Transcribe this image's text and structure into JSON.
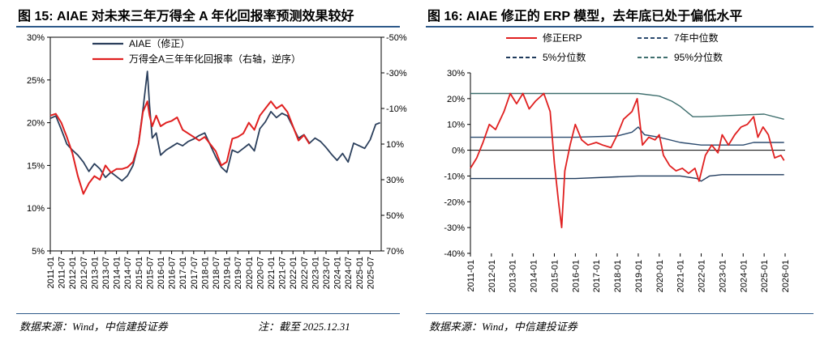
{
  "figure1": {
    "title": "图 15: AIAE 对未来三年万得全 A 年化回报率预测效果较好",
    "source": "数据来源：Wind，中信建投证券",
    "note": "注：截至 2025.12.31"
  },
  "figure2": {
    "title": "图 16: AIAE 修正的 ERP 模型，去年底已处于偏低水平",
    "source": "数据来源：Wind，中信建投证券"
  },
  "chart_data": [
    {
      "type": "line",
      "left_axis": {
        "ylim": [
          5,
          30
        ],
        "ticks": [
          "5%",
          "10%",
          "15%",
          "20%",
          "25%",
          "30%"
        ]
      },
      "right_axis": {
        "ylim": [
          -50,
          70
        ],
        "inverted": true,
        "ticks": [
          "-50%",
          "-30%",
          "-10%",
          "10%",
          "30%",
          "50%",
          "70%"
        ]
      },
      "x_ticks": [
        "2011-01",
        "2011-07",
        "2012-01",
        "2012-07",
        "2013-01",
        "2013-07",
        "2014-01",
        "2014-07",
        "2015-01",
        "2015-07",
        "2016-01",
        "2016-07",
        "2017-01",
        "2017-07",
        "2018-01",
        "2018-07",
        "2019-01",
        "2019-07",
        "2020-01",
        "2020-07",
        "2021-01",
        "2021-07",
        "2022-01",
        "2022-07",
        "2023-01",
        "2023-07",
        "2024-01",
        "2024-07",
        "2025-01",
        "2025-07"
      ],
      "legend_position": "top",
      "series": [
        {
          "name": "AIAE（修正）",
          "axis": "left",
          "color": "#2b3f5c",
          "points": [
            [
              2011.0,
              20.5
            ],
            [
              2011.25,
              20.8
            ],
            [
              2011.5,
              19.2
            ],
            [
              2011.75,
              17.5
            ],
            [
              2012.0,
              16.8
            ],
            [
              2012.25,
              16.2
            ],
            [
              2012.5,
              15.4
            ],
            [
              2012.75,
              14.3
            ],
            [
              2013.0,
              15.2
            ],
            [
              2013.25,
              14.6
            ],
            [
              2013.5,
              13.6
            ],
            [
              2013.75,
              14.2
            ],
            [
              2014.0,
              13.7
            ],
            [
              2014.25,
              13.2
            ],
            [
              2014.5,
              13.8
            ],
            [
              2014.75,
              15.0
            ],
            [
              2015.0,
              17.6
            ],
            [
              2015.2,
              21.5
            ],
            [
              2015.4,
              26.0
            ],
            [
              2015.5,
              22.0
            ],
            [
              2015.62,
              18.2
            ],
            [
              2015.8,
              18.8
            ],
            [
              2016.0,
              16.2
            ],
            [
              2016.25,
              16.8
            ],
            [
              2016.5,
              17.2
            ],
            [
              2016.75,
              17.6
            ],
            [
              2017.0,
              17.3
            ],
            [
              2017.25,
              17.8
            ],
            [
              2017.5,
              18.1
            ],
            [
              2017.75,
              18.5
            ],
            [
              2018.0,
              18.8
            ],
            [
              2018.25,
              17.4
            ],
            [
              2018.5,
              16.0
            ],
            [
              2018.75,
              14.8
            ],
            [
              2019.0,
              14.2
            ],
            [
              2019.25,
              16.8
            ],
            [
              2019.5,
              16.5
            ],
            [
              2019.75,
              17.0
            ],
            [
              2020.0,
              17.5
            ],
            [
              2020.25,
              16.7
            ],
            [
              2020.5,
              19.3
            ],
            [
              2020.75,
              20.1
            ],
            [
              2021.0,
              21.3
            ],
            [
              2021.25,
              20.6
            ],
            [
              2021.5,
              21.1
            ],
            [
              2021.75,
              20.8
            ],
            [
              2022.0,
              19.5
            ],
            [
              2022.25,
              18.2
            ],
            [
              2022.5,
              18.6
            ],
            [
              2022.75,
              17.6
            ],
            [
              2023.0,
              18.2
            ],
            [
              2023.25,
              17.8
            ],
            [
              2023.5,
              17.1
            ],
            [
              2023.75,
              16.3
            ],
            [
              2024.0,
              15.6
            ],
            [
              2024.25,
              16.4
            ],
            [
              2024.5,
              15.4
            ],
            [
              2024.75,
              17.6
            ],
            [
              2025.0,
              17.3
            ],
            [
              2025.25,
              17.0
            ],
            [
              2025.5,
              18.0
            ],
            [
              2025.75,
              19.8
            ],
            [
              2025.95,
              20.0
            ]
          ]
        },
        {
          "name": "万得全A三年年化回报率（右轴，逆序）",
          "axis": "right",
          "color": "#e02020",
          "points": [
            [
              2011.0,
              -6
            ],
            [
              2011.25,
              -7
            ],
            [
              2011.5,
              -2
            ],
            [
              2011.75,
              6
            ],
            [
              2012.0,
              15
            ],
            [
              2012.25,
              28
            ],
            [
              2012.5,
              38
            ],
            [
              2012.75,
              32
            ],
            [
              2013.0,
              28
            ],
            [
              2013.25,
              30
            ],
            [
              2013.5,
              22
            ],
            [
              2013.75,
              26
            ],
            [
              2014.0,
              24
            ],
            [
              2014.25,
              24
            ],
            [
              2014.5,
              23
            ],
            [
              2014.75,
              20
            ],
            [
              2015.0,
              10
            ],
            [
              2015.2,
              -8
            ],
            [
              2015.4,
              -14
            ],
            [
              2015.5,
              -6
            ],
            [
              2015.62,
              0
            ],
            [
              2015.8,
              -6
            ],
            [
              2016.0,
              0
            ],
            [
              2016.25,
              -2
            ],
            [
              2016.5,
              -3
            ],
            [
              2016.75,
              -5
            ],
            [
              2017.0,
              2
            ],
            [
              2017.25,
              4
            ],
            [
              2017.5,
              6
            ],
            [
              2017.75,
              8
            ],
            [
              2018.0,
              6
            ],
            [
              2018.25,
              10
            ],
            [
              2018.5,
              14
            ],
            [
              2018.75,
              22
            ],
            [
              2019.0,
              20
            ],
            [
              2019.25,
              7
            ],
            [
              2019.5,
              6
            ],
            [
              2019.75,
              4
            ],
            [
              2020.0,
              -2
            ],
            [
              2020.25,
              2
            ],
            [
              2020.5,
              -6
            ],
            [
              2020.75,
              -10
            ],
            [
              2021.0,
              -14
            ],
            [
              2021.25,
              -10
            ],
            [
              2021.5,
              -12
            ],
            [
              2021.75,
              -8
            ],
            [
              2022.0,
              0
            ],
            [
              2022.25,
              8
            ],
            [
              2022.5,
              5
            ],
            [
              2022.75,
              10
            ]
          ]
        }
      ]
    },
    {
      "type": "line",
      "ylim": [
        -40,
        30
      ],
      "y_ticks": [
        "-40%",
        "-30%",
        "-20%",
        "-10%",
        "0%",
        "10%",
        "20%",
        "30%"
      ],
      "x_ticks": [
        "2011-01",
        "2012-01",
        "2013-01",
        "2014-01",
        "2015-01",
        "2016-01",
        "2017-01",
        "2018-01",
        "2019-01",
        "2020-01",
        "2021-01",
        "2022-01",
        "2023-01",
        "2024-01",
        "2025-01",
        "2026-01"
      ],
      "legend_position": "top",
      "series": [
        {
          "name": "修正ERP",
          "color": "#e02020",
          "dash": "solid",
          "points": [
            [
              2011.0,
              -7
            ],
            [
              2011.3,
              -3
            ],
            [
              2011.6,
              3
            ],
            [
              2011.9,
              10
            ],
            [
              2012.2,
              8
            ],
            [
              2012.6,
              15
            ],
            [
              2012.9,
              22
            ],
            [
              2013.2,
              18
            ],
            [
              2013.5,
              22
            ],
            [
              2013.8,
              16
            ],
            [
              2014.1,
              19
            ],
            [
              2014.5,
              22
            ],
            [
              2014.8,
              15
            ],
            [
              2015.0,
              -5
            ],
            [
              2015.2,
              -20
            ],
            [
              2015.35,
              -30
            ],
            [
              2015.5,
              -8
            ],
            [
              2015.75,
              2
            ],
            [
              2016.0,
              10
            ],
            [
              2016.3,
              4
            ],
            [
              2016.6,
              2
            ],
            [
              2017.0,
              3
            ],
            [
              2017.3,
              2
            ],
            [
              2017.7,
              1
            ],
            [
              2018.0,
              6
            ],
            [
              2018.3,
              12
            ],
            [
              2018.7,
              15
            ],
            [
              2018.95,
              20
            ],
            [
              2019.2,
              2
            ],
            [
              2019.5,
              5
            ],
            [
              2019.8,
              4
            ],
            [
              2020.0,
              6
            ],
            [
              2020.2,
              -2
            ],
            [
              2020.5,
              -6
            ],
            [
              2020.8,
              -8
            ],
            [
              2021.1,
              -7
            ],
            [
              2021.4,
              -9
            ],
            [
              2021.7,
              -7
            ],
            [
              2021.9,
              -12
            ],
            [
              2022.2,
              -2
            ],
            [
              2022.5,
              2
            ],
            [
              2022.8,
              -1
            ],
            [
              2023.0,
              6
            ],
            [
              2023.3,
              2
            ],
            [
              2023.6,
              6
            ],
            [
              2023.9,
              9
            ],
            [
              2024.2,
              10
            ],
            [
              2024.5,
              13
            ],
            [
              2024.7,
              5
            ],
            [
              2024.95,
              9
            ],
            [
              2025.2,
              6
            ],
            [
              2025.5,
              -3
            ],
            [
              2025.8,
              -2
            ],
            [
              2025.95,
              -4
            ]
          ]
        },
        {
          "name": "7年中位数",
          "color": "#2b4a6e",
          "dash": "dashed",
          "points": [
            [
              2011.0,
              5
            ],
            [
              2016.0,
              5
            ],
            [
              2018.0,
              5.5
            ],
            [
              2018.7,
              7
            ],
            [
              2019.0,
              9
            ],
            [
              2019.3,
              6
            ],
            [
              2020.0,
              5
            ],
            [
              2021.0,
              3
            ],
            [
              2022.0,
              2
            ],
            [
              2023.0,
              2
            ],
            [
              2024.0,
              2
            ],
            [
              2024.5,
              3
            ],
            [
              2025.0,
              3
            ],
            [
              2025.95,
              3
            ]
          ]
        },
        {
          "name": "5%分位数",
          "color": "#1f3a5c",
          "dash": "dashed",
          "points": [
            [
              2011.0,
              -11
            ],
            [
              2016.0,
              -11
            ],
            [
              2019.0,
              -10
            ],
            [
              2021.0,
              -10
            ],
            [
              2021.8,
              -11
            ],
            [
              2022.0,
              -12
            ],
            [
              2022.4,
              -10
            ],
            [
              2023.0,
              -9.5
            ],
            [
              2025.95,
              -9.5
            ]
          ]
        },
        {
          "name": "95%分位数",
          "color": "#3f6f6e",
          "dash": "dashed",
          "points": [
            [
              2011.0,
              22
            ],
            [
              2018.0,
              22
            ],
            [
              2019.0,
              22
            ],
            [
              2020.0,
              21
            ],
            [
              2020.6,
              19
            ],
            [
              2021.0,
              17
            ],
            [
              2021.6,
              13
            ],
            [
              2022.0,
              13
            ],
            [
              2025.0,
              14
            ],
            [
              2025.95,
              12
            ]
          ]
        }
      ]
    }
  ]
}
